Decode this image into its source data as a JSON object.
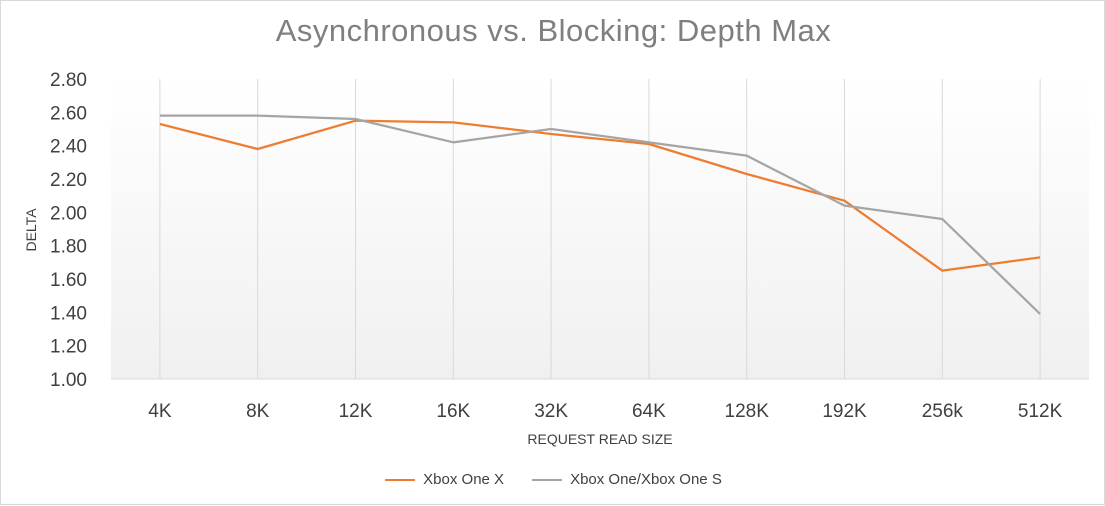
{
  "chart_data": {
    "type": "line",
    "title": "Asynchronous vs. Blocking: Depth Max",
    "xlabel": "REQUEST READ SIZE",
    "ylabel": "DELTA",
    "categories": [
      "4K",
      "8K",
      "12K",
      "16K",
      "32K",
      "64K",
      "128K",
      "192K",
      "256k",
      "512K"
    ],
    "ylim": [
      1.0,
      2.8
    ],
    "yticks": [
      "1.00",
      "1.20",
      "1.40",
      "1.60",
      "1.80",
      "2.00",
      "2.20",
      "2.40",
      "2.60",
      "2.80"
    ],
    "grid": "vertical",
    "legend_position": "bottom",
    "series": [
      {
        "name": "Xbox One X",
        "color": "#ed7d31",
        "values": [
          2.53,
          2.38,
          2.55,
          2.54,
          2.47,
          2.41,
          2.23,
          2.07,
          1.65,
          1.73
        ]
      },
      {
        "name": "Xbox One/Xbox One S",
        "color": "#a5a5a5",
        "values": [
          2.58,
          2.58,
          2.56,
          2.42,
          2.5,
          2.42,
          2.34,
          2.04,
          1.96,
          1.39
        ]
      }
    ]
  }
}
